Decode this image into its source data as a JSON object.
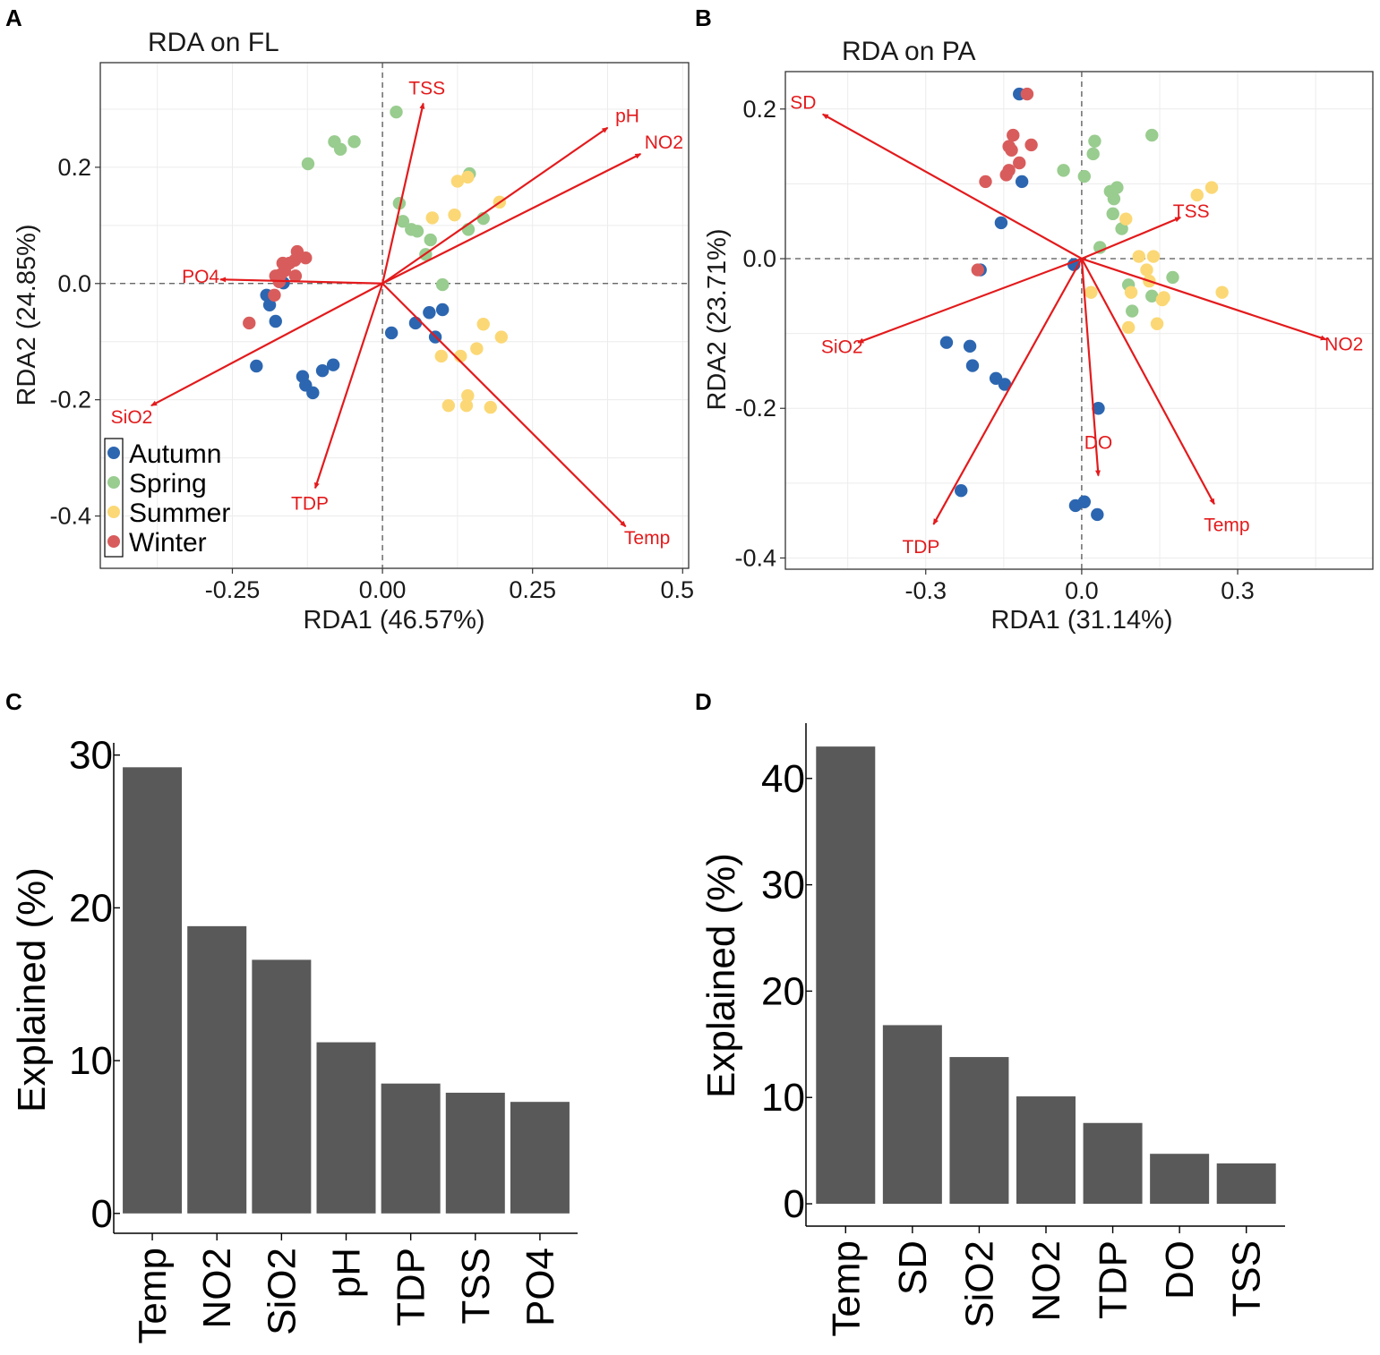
{
  "panels": {
    "A": {
      "letter": "A"
    },
    "B": {
      "letter": "B"
    },
    "C": {
      "letter": "C"
    },
    "D": {
      "letter": "D"
    }
  },
  "legend": {
    "items": [
      {
        "label": "Autumn",
        "color": "#2c66b0"
      },
      {
        "label": "Spring",
        "color": "#99cc8f"
      },
      {
        "label": "Summer",
        "color": "#fbd875"
      },
      {
        "label": "Winter",
        "color": "#d95c5c"
      }
    ]
  },
  "colors": {
    "Autumn": "#2c66b0",
    "Spring": "#99cc8f",
    "Summer": "#fbd875",
    "Winter": "#d95c5c",
    "vector": "#e31a1c",
    "bar": "#595959"
  },
  "chart_data": [
    {
      "id": "A",
      "type": "scatter",
      "title": "RDA on FL",
      "xlabel": "RDA1 (46.57%)",
      "ylabel": "RDA2 (24.85%)",
      "xlim": [
        -0.47,
        0.51
      ],
      "ylim": [
        -0.49,
        0.38
      ],
      "xticks": [
        -0.25,
        0.0,
        0.25,
        0.5
      ],
      "xtick_labels": [
        "-0.25",
        "0.00",
        "0.25",
        "0.5"
      ],
      "yticks": [
        -0.4,
        -0.2,
        0.0,
        0.2
      ],
      "ytick_labels": [
        "-0.4",
        "-0.2",
        "0.0",
        "0.2"
      ],
      "legend_position": "bottom-left",
      "points": [
        {
          "x": -0.193,
          "y": -0.02,
          "season": "Autumn"
        },
        {
          "x": -0.188,
          "y": -0.037,
          "season": "Autumn"
        },
        {
          "x": -0.178,
          "y": -0.065,
          "season": "Autumn"
        },
        {
          "x": -0.165,
          "y": 0.001,
          "season": "Autumn"
        },
        {
          "x": -0.21,
          "y": -0.142,
          "season": "Autumn"
        },
        {
          "x": -0.133,
          "y": -0.16,
          "season": "Autumn"
        },
        {
          "x": -0.128,
          "y": -0.175,
          "season": "Autumn"
        },
        {
          "x": -0.116,
          "y": -0.188,
          "season": "Autumn"
        },
        {
          "x": -0.1,
          "y": -0.15,
          "season": "Autumn"
        },
        {
          "x": -0.082,
          "y": -0.14,
          "season": "Autumn"
        },
        {
          "x": 0.015,
          "y": -0.085,
          "season": "Autumn"
        },
        {
          "x": 0.055,
          "y": -0.068,
          "season": "Autumn"
        },
        {
          "x": 0.078,
          "y": -0.05,
          "season": "Autumn"
        },
        {
          "x": 0.088,
          "y": -0.092,
          "season": "Autumn"
        },
        {
          "x": 0.1,
          "y": -0.045,
          "season": "Autumn"
        },
        {
          "x": 0.023,
          "y": 0.295,
          "season": "Spring"
        },
        {
          "x": -0.08,
          "y": 0.244,
          "season": "Spring"
        },
        {
          "x": -0.047,
          "y": 0.244,
          "season": "Spring"
        },
        {
          "x": -0.07,
          "y": 0.231,
          "season": "Spring"
        },
        {
          "x": -0.124,
          "y": 0.206,
          "season": "Spring"
        },
        {
          "x": 0.145,
          "y": 0.189,
          "season": "Spring"
        },
        {
          "x": 0.028,
          "y": 0.138,
          "season": "Spring"
        },
        {
          "x": 0.034,
          "y": 0.107,
          "season": "Spring"
        },
        {
          "x": 0.048,
          "y": 0.093,
          "season": "Spring"
        },
        {
          "x": 0.058,
          "y": 0.09,
          "season": "Spring"
        },
        {
          "x": 0.08,
          "y": 0.075,
          "season": "Spring"
        },
        {
          "x": 0.072,
          "y": 0.05,
          "season": "Spring"
        },
        {
          "x": 0.143,
          "y": 0.093,
          "season": "Spring"
        },
        {
          "x": 0.168,
          "y": 0.112,
          "season": "Spring"
        },
        {
          "x": 0.1,
          "y": -0.002,
          "season": "Spring"
        },
        {
          "x": 0.125,
          "y": 0.176,
          "season": "Summer"
        },
        {
          "x": 0.142,
          "y": 0.183,
          "season": "Summer"
        },
        {
          "x": 0.195,
          "y": 0.14,
          "season": "Summer"
        },
        {
          "x": 0.12,
          "y": 0.118,
          "season": "Summer"
        },
        {
          "x": 0.083,
          "y": 0.113,
          "season": "Summer"
        },
        {
          "x": 0.168,
          "y": -0.07,
          "season": "Summer"
        },
        {
          "x": 0.198,
          "y": -0.092,
          "season": "Summer"
        },
        {
          "x": 0.157,
          "y": -0.112,
          "season": "Summer"
        },
        {
          "x": 0.098,
          "y": -0.125,
          "season": "Summer"
        },
        {
          "x": 0.13,
          "y": -0.125,
          "season": "Summer"
        },
        {
          "x": 0.142,
          "y": -0.193,
          "season": "Summer"
        },
        {
          "x": 0.14,
          "y": -0.21,
          "season": "Summer"
        },
        {
          "x": 0.11,
          "y": -0.21,
          "season": "Summer"
        },
        {
          "x": 0.18,
          "y": -0.213,
          "season": "Summer"
        },
        {
          "x": -0.142,
          "y": 0.055,
          "season": "Winter"
        },
        {
          "x": -0.128,
          "y": 0.044,
          "season": "Winter"
        },
        {
          "x": -0.146,
          "y": 0.04,
          "season": "Winter"
        },
        {
          "x": -0.155,
          "y": 0.035,
          "season": "Winter"
        },
        {
          "x": -0.166,
          "y": 0.035,
          "season": "Winter"
        },
        {
          "x": -0.163,
          "y": 0.022,
          "season": "Winter"
        },
        {
          "x": -0.17,
          "y": 0.015,
          "season": "Winter"
        },
        {
          "x": -0.178,
          "y": 0.013,
          "season": "Winter"
        },
        {
          "x": -0.172,
          "y": 0.003,
          "season": "Winter"
        },
        {
          "x": -0.145,
          "y": 0.013,
          "season": "Winter"
        },
        {
          "x": -0.18,
          "y": -0.02,
          "season": "Winter"
        },
        {
          "x": -0.222,
          "y": -0.068,
          "season": "Winter"
        }
      ],
      "vectors": [
        {
          "name": "TSS",
          "x": 0.068,
          "y": 0.31
        },
        {
          "name": "pH",
          "x": 0.375,
          "y": 0.268
        },
        {
          "name": "NO2",
          "x": 0.43,
          "y": 0.223
        },
        {
          "name": "PO4",
          "x": -0.27,
          "y": 0.007
        },
        {
          "name": "SiO2",
          "x": -0.385,
          "y": -0.21
        },
        {
          "name": "TDP",
          "x": -0.112,
          "y": -0.352
        },
        {
          "name": "Temp",
          "x": 0.405,
          "y": -0.418
        }
      ]
    },
    {
      "id": "B",
      "type": "scatter",
      "title": "RDA on PA",
      "xlabel": "RDA1 (31.14%)",
      "ylabel": "RDA2 (23.71%)",
      "xlim": [
        -0.57,
        0.56
      ],
      "ylim": [
        -0.415,
        0.25
      ],
      "xticks": [
        -0.3,
        0.0,
        0.3
      ],
      "xtick_labels": [
        "-0.3",
        "0.0",
        "0.3"
      ],
      "yticks": [
        -0.4,
        -0.2,
        0.0,
        0.2
      ],
      "ytick_labels": [
        "-0.4",
        "-0.2",
        "0.0",
        "0.2"
      ],
      "points": [
        {
          "x": -0.12,
          "y": 0.22,
          "season": "Autumn"
        },
        {
          "x": -0.115,
          "y": 0.103,
          "season": "Autumn"
        },
        {
          "x": -0.155,
          "y": 0.048,
          "season": "Autumn"
        },
        {
          "x": -0.195,
          "y": -0.015,
          "season": "Autumn"
        },
        {
          "x": -0.015,
          "y": -0.008,
          "season": "Autumn"
        },
        {
          "x": -0.26,
          "y": -0.112,
          "season": "Autumn"
        },
        {
          "x": -0.215,
          "y": -0.117,
          "season": "Autumn"
        },
        {
          "x": -0.21,
          "y": -0.143,
          "season": "Autumn"
        },
        {
          "x": -0.165,
          "y": -0.16,
          "season": "Autumn"
        },
        {
          "x": -0.148,
          "y": -0.168,
          "season": "Autumn"
        },
        {
          "x": 0.032,
          "y": -0.2,
          "season": "Autumn"
        },
        {
          "x": -0.232,
          "y": -0.31,
          "season": "Autumn"
        },
        {
          "x": -0.012,
          "y": -0.33,
          "season": "Autumn"
        },
        {
          "x": 0.005,
          "y": -0.325,
          "season": "Autumn"
        },
        {
          "x": 0.03,
          "y": -0.342,
          "season": "Autumn"
        },
        {
          "x": 0.135,
          "y": 0.165,
          "season": "Spring"
        },
        {
          "x": 0.025,
          "y": 0.157,
          "season": "Spring"
        },
        {
          "x": 0.022,
          "y": 0.14,
          "season": "Spring"
        },
        {
          "x": -0.035,
          "y": 0.118,
          "season": "Spring"
        },
        {
          "x": 0.005,
          "y": 0.11,
          "season": "Spring"
        },
        {
          "x": 0.055,
          "y": 0.09,
          "season": "Spring"
        },
        {
          "x": 0.068,
          "y": 0.095,
          "season": "Spring"
        },
        {
          "x": 0.062,
          "y": 0.08,
          "season": "Spring"
        },
        {
          "x": 0.06,
          "y": 0.06,
          "season": "Spring"
        },
        {
          "x": 0.077,
          "y": 0.04,
          "season": "Spring"
        },
        {
          "x": 0.035,
          "y": 0.015,
          "season": "Spring"
        },
        {
          "x": 0.09,
          "y": -0.035,
          "season": "Spring"
        },
        {
          "x": 0.135,
          "y": -0.05,
          "season": "Spring"
        },
        {
          "x": 0.175,
          "y": -0.025,
          "season": "Spring"
        },
        {
          "x": 0.097,
          "y": -0.07,
          "season": "Spring"
        },
        {
          "x": 0.25,
          "y": 0.095,
          "season": "Summer"
        },
        {
          "x": 0.222,
          "y": 0.085,
          "season": "Summer"
        },
        {
          "x": 0.085,
          "y": 0.053,
          "season": "Summer"
        },
        {
          "x": 0.11,
          "y": 0.003,
          "season": "Summer"
        },
        {
          "x": 0.138,
          "y": 0.003,
          "season": "Summer"
        },
        {
          "x": 0.125,
          "y": -0.015,
          "season": "Summer"
        },
        {
          "x": 0.13,
          "y": -0.03,
          "season": "Summer"
        },
        {
          "x": 0.095,
          "y": -0.045,
          "season": "Summer"
        },
        {
          "x": 0.018,
          "y": -0.045,
          "season": "Summer"
        },
        {
          "x": 0.155,
          "y": -0.055,
          "season": "Summer"
        },
        {
          "x": 0.27,
          "y": -0.045,
          "season": "Summer"
        },
        {
          "x": 0.145,
          "y": -0.087,
          "season": "Summer"
        },
        {
          "x": 0.09,
          "y": -0.092,
          "season": "Summer"
        },
        {
          "x": 0.158,
          "y": -0.052,
          "season": "Summer"
        },
        {
          "x": -0.105,
          "y": 0.22,
          "season": "Winter"
        },
        {
          "x": -0.132,
          "y": 0.165,
          "season": "Winter"
        },
        {
          "x": -0.097,
          "y": 0.152,
          "season": "Winter"
        },
        {
          "x": -0.14,
          "y": 0.15,
          "season": "Winter"
        },
        {
          "x": -0.135,
          "y": 0.145,
          "season": "Winter"
        },
        {
          "x": -0.12,
          "y": 0.128,
          "season": "Winter"
        },
        {
          "x": -0.14,
          "y": 0.118,
          "season": "Winter"
        },
        {
          "x": -0.145,
          "y": 0.112,
          "season": "Winter"
        },
        {
          "x": -0.185,
          "y": 0.103,
          "season": "Winter"
        },
        {
          "x": -0.2,
          "y": -0.015,
          "season": "Winter"
        }
      ],
      "vectors": [
        {
          "name": "SD",
          "x": -0.498,
          "y": 0.193
        },
        {
          "name": "TSS",
          "x": 0.19,
          "y": 0.055
        },
        {
          "name": "NO2",
          "x": 0.47,
          "y": -0.108
        },
        {
          "name": "SiO2",
          "x": -0.43,
          "y": -0.112
        },
        {
          "name": "TDP",
          "x": -0.285,
          "y": -0.355
        },
        {
          "name": "DO",
          "x": 0.032,
          "y": -0.29
        },
        {
          "name": "Temp",
          "x": 0.255,
          "y": -0.328
        }
      ]
    },
    {
      "id": "C",
      "type": "bar",
      "ylabel": "Explained (%)",
      "xlabel": "",
      "categories": [
        "Temp",
        "NO2",
        "SiO2",
        "pH",
        "TDP",
        "TSS",
        "PO4"
      ],
      "values": [
        29.2,
        18.8,
        16.6,
        11.2,
        8.5,
        7.9,
        7.3
      ],
      "ylim": [
        -1.3,
        30.8
      ],
      "yticks": [
        0,
        10,
        20,
        30
      ],
      "ytick_labels": [
        "0",
        "10",
        "20",
        "30"
      ]
    },
    {
      "id": "D",
      "type": "bar",
      "ylabel": "Explained (%)",
      "xlabel": "",
      "categories": [
        "Temp",
        "SD",
        "SiO2",
        "NO2",
        "TDP",
        "DO",
        "TSS"
      ],
      "values": [
        43.0,
        16.8,
        13.8,
        10.1,
        7.6,
        4.7,
        3.8
      ],
      "ylim": [
        -2.1,
        45.2
      ],
      "yticks": [
        0,
        10,
        20,
        30,
        40
      ],
      "ytick_labels": [
        "0",
        "10",
        "20",
        "30",
        "40"
      ]
    }
  ]
}
